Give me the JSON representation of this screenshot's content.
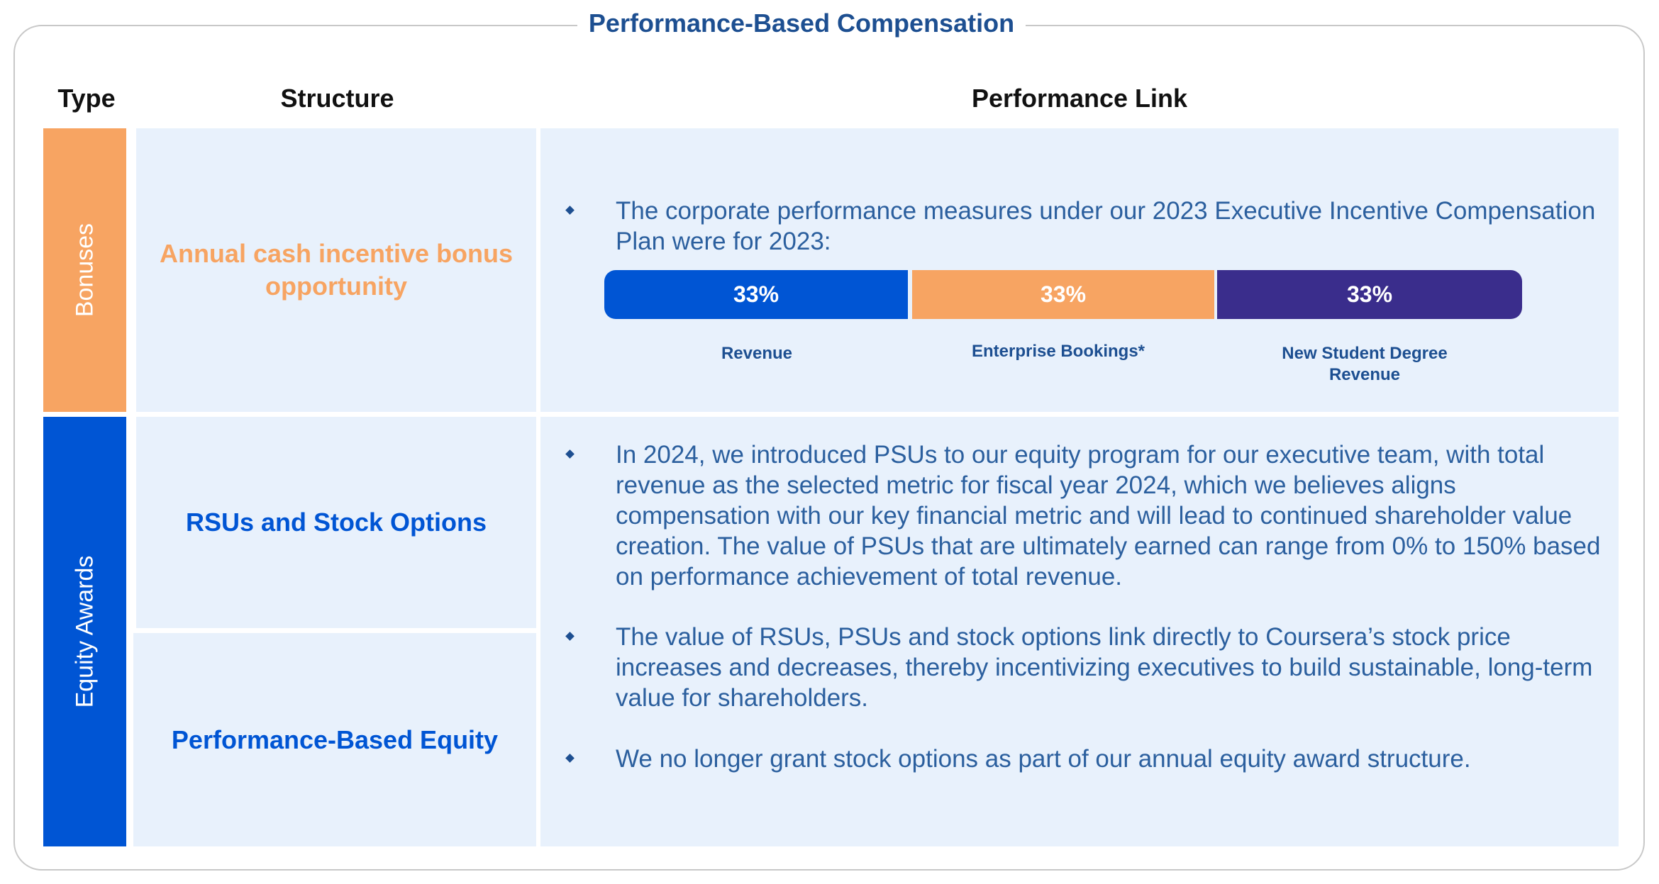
{
  "title": "Performance-Based Compensation",
  "headers": {
    "type": "Type",
    "structure": "Structure",
    "performance_link": "Performance Link"
  },
  "types": {
    "bonuses": "Bonuses",
    "equity_awards": "Equity Awards"
  },
  "structures": {
    "bonus": "Annual cash incentive bonus opportunity",
    "rsus": "RSUs and Stock Options",
    "performance_equity": "Performance-Based Equity"
  },
  "bonus_link": {
    "text": "The corporate performance measures under our 2023 Executive Incentive Compensation Plan were for 2023:",
    "segments": [
      {
        "percent": "33%",
        "label": "Revenue",
        "value": 33,
        "color": "#0055d4"
      },
      {
        "percent": "33%",
        "label": "Enterprise Bookings*",
        "value": 33,
        "color": "#f7a462"
      },
      {
        "percent": "33%",
        "label": "New Student Degree Revenue",
        "value": 33,
        "color": "#3a2d8c"
      }
    ]
  },
  "equity_link": {
    "bullets": [
      "In 2024, we introduced PSUs to our equity program for our executive team, with total revenue as the selected metric for fiscal year 2024, which we believes aligns compensation with our key financial metric and will lead to continued shareholder value creation. The value of PSUs that are ultimately earned can range from 0% to 150% based on performance achievement of total revenue.",
      "The value of RSUs, PSUs and stock options link directly to Coursera’s stock price increases and decreases, thereby incentivizing executives to build sustainable, long-term value for shareholders.",
      "We no longer grant stock options as part of our annual equity award structure."
    ]
  },
  "colors": {
    "title": "#1d4f91",
    "bonus_accent": "#f7a462",
    "equity_accent": "#0055d4",
    "cell_bg": "#e8f1fc",
    "text_blue": "#2b5f9e"
  }
}
